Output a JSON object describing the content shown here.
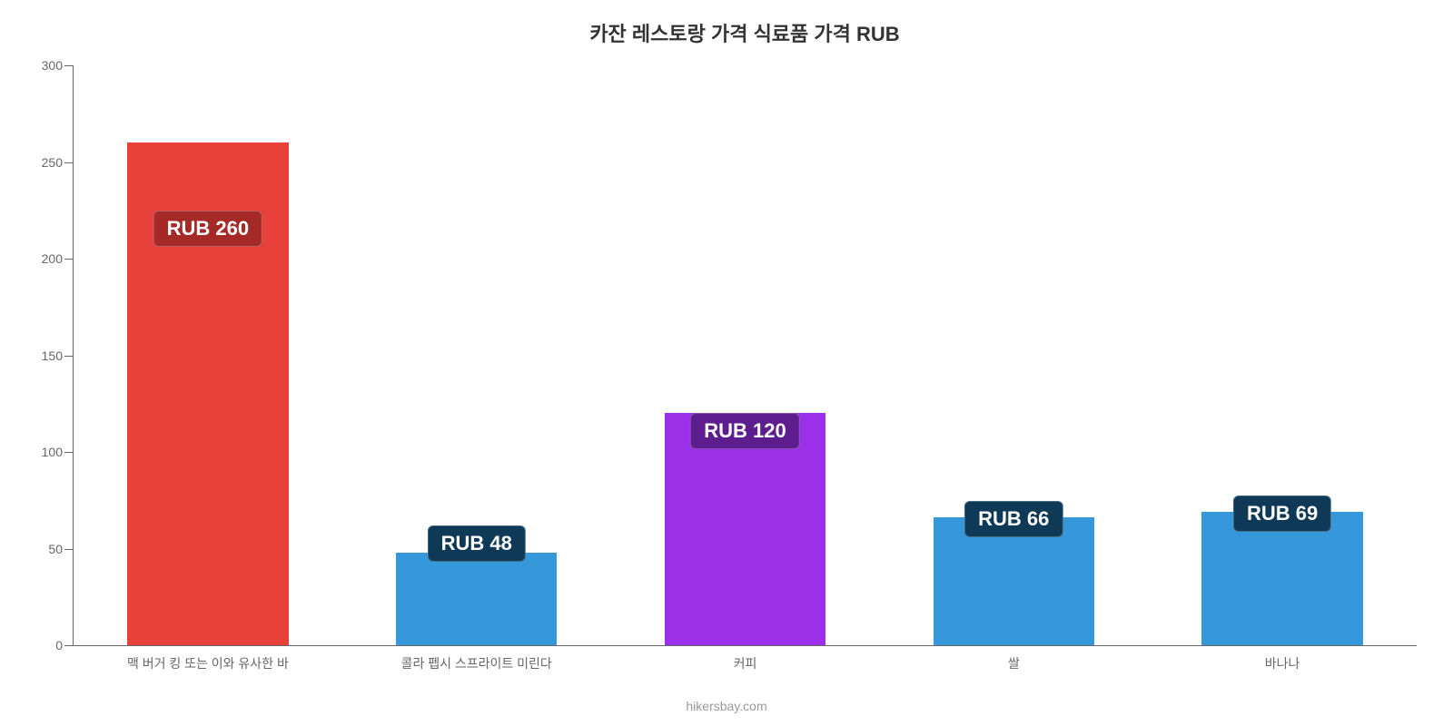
{
  "chart": {
    "type": "bar",
    "title": "카잔 레스토랑 가격 식료품 가격 RUB",
    "title_fontsize": 22,
    "title_color": "#333333",
    "background_color": "#ffffff",
    "axis_color": "#666666",
    "axis_label_color": "#666666",
    "axis_label_fontsize": 14,
    "ylim": [
      0,
      300
    ],
    "ytick_step": 50,
    "yticks": [
      0,
      50,
      100,
      150,
      200,
      250,
      300
    ],
    "bar_width_pct": 60,
    "categories": [
      "맥 버거 킹 또는 이와 유사한 바",
      "콜라 펩시 스프라이트 미린다",
      "커피",
      "쌀",
      "바나나"
    ],
    "values": [
      260,
      48,
      120,
      66,
      69
    ],
    "value_labels": [
      "RUB 260",
      "RUB 48",
      "RUB 120",
      "RUB 66",
      "RUB 69"
    ],
    "bar_colors": [
      "#e8403a",
      "#3498db",
      "#9b30e8",
      "#3498db",
      "#3498db"
    ],
    "badge_bg_colors": [
      "#a52a27",
      "#0f3a57",
      "#5e1d8f",
      "#0f3a57",
      "#0f3a57"
    ],
    "badge_text_color": "#ffffff",
    "badge_fontsize": 22,
    "badge_offsets": [
      -115,
      -10,
      -40,
      -22,
      -22
    ],
    "attribution": "hikersbay.com",
    "attribution_color": "#999999",
    "attribution_fontsize": 14
  }
}
